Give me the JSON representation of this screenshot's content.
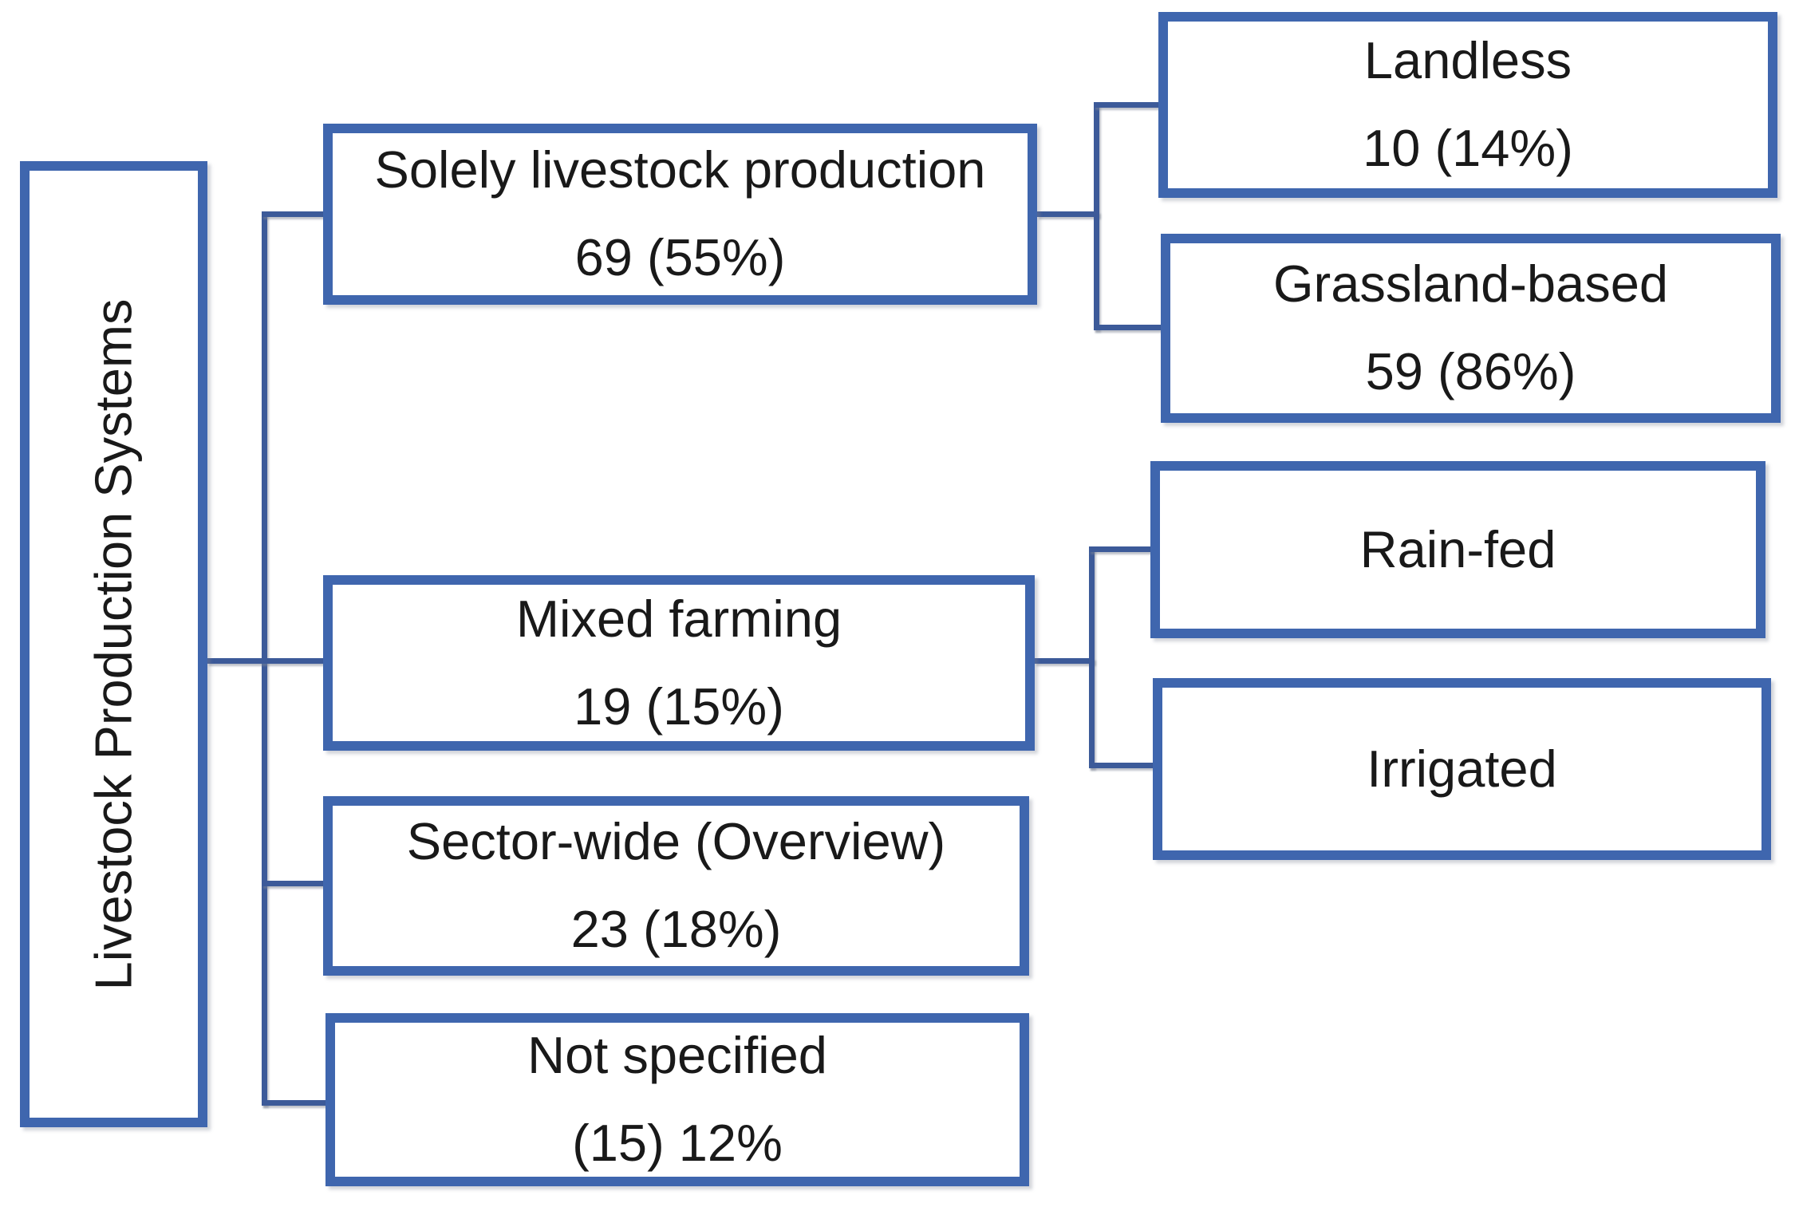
{
  "diagram": {
    "title": "Livestock Production Systems hierarchy",
    "colors": {
      "box_border": "#3f66ae",
      "connector": "#3c5a99",
      "text": "#191919",
      "background": "#ffffff"
    },
    "boxes": {
      "root": {
        "label": "Livestock Production Systems"
      },
      "solely": {
        "title": "Solely livestock production",
        "count": "69 (55%)"
      },
      "mixed": {
        "title": "Mixed farming",
        "count": "19 (15%)"
      },
      "sector": {
        "title": "Sector-wide (Overview)",
        "count": "23 (18%)"
      },
      "notspec": {
        "title": "Not specified",
        "count": "(15) 12%"
      },
      "landless": {
        "title": "Landless",
        "count": "10 (14%)"
      },
      "grassland": {
        "title": "Grassland-based",
        "count": "59 (86%)"
      },
      "rainfed": {
        "title": "Rain-fed"
      },
      "irrigated": {
        "title": "Irrigated"
      }
    },
    "structure": [
      {
        "parent": "root",
        "child": "solely"
      },
      {
        "parent": "root",
        "child": "mixed"
      },
      {
        "parent": "root",
        "child": "sector"
      },
      {
        "parent": "root",
        "child": "notspec"
      },
      {
        "parent": "solely",
        "child": "landless"
      },
      {
        "parent": "solely",
        "child": "grassland"
      },
      {
        "parent": "mixed",
        "child": "rainfed"
      },
      {
        "parent": "mixed",
        "child": "irrigated"
      }
    ]
  }
}
